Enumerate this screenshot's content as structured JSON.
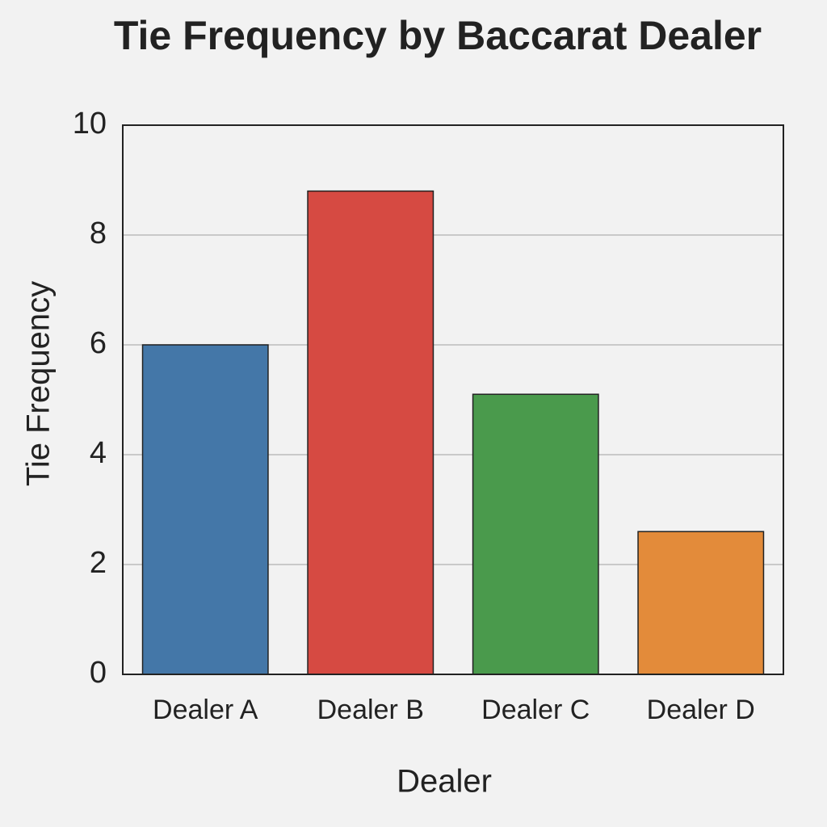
{
  "chart_data": {
    "type": "bar",
    "title": "Tie Frequency by Baccarat Dealer",
    "x_label": "Dealer",
    "y_label": "Tie Frequency",
    "categories": [
      "Dealer A",
      "Dealer B",
      "Dealer C",
      "Dealer D"
    ],
    "values": [
      6,
      8.8,
      5.1,
      2.6
    ],
    "colors": [
      "#4477a8",
      "#d64a42",
      "#4a9a4c",
      "#e38b3a"
    ],
    "ylim": [
      0,
      10
    ],
    "yticks": [
      0,
      2,
      4,
      6,
      8,
      10
    ],
    "grid": true
  }
}
